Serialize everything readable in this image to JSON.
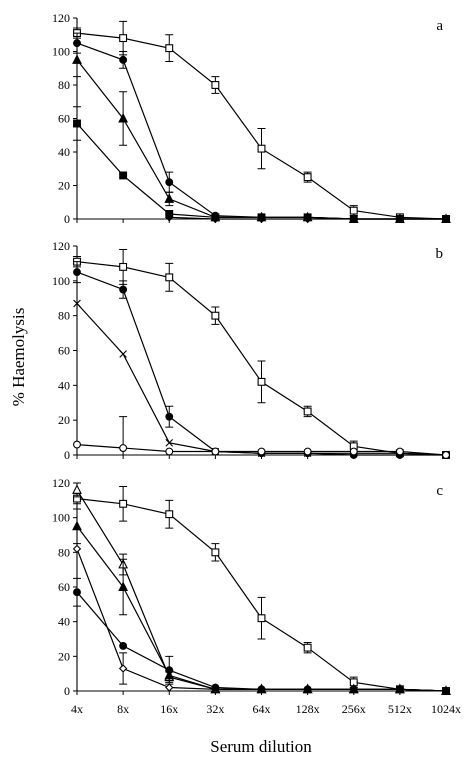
{
  "figure": {
    "ylabel": "% Haemolysis",
    "xlabel": "Serum dilution"
  },
  "chart_data": [
    {
      "type": "line",
      "panel": "a",
      "categories": [
        "4x",
        "8x",
        "16x",
        "32x",
        "64x",
        "128x",
        "256x",
        "512x",
        "1024x"
      ],
      "ylim": [
        0,
        120
      ],
      "yticks": [
        "0",
        "20",
        "40",
        "60",
        "80",
        "100",
        "120"
      ],
      "show_xtick_labels": false,
      "series": [
        {
          "marker": "open-square",
          "values": [
            111,
            108,
            102,
            80,
            42,
            25,
            5,
            1,
            0
          ],
          "errors": [
            3,
            10,
            8,
            5,
            12,
            3,
            3,
            0,
            0
          ]
        },
        {
          "marker": "filled-circle",
          "values": [
            105,
            95,
            22,
            2,
            1,
            1,
            0,
            0,
            0
          ],
          "errors": [
            6,
            5,
            6,
            0,
            0,
            0,
            0,
            0,
            0
          ]
        },
        {
          "marker": "filled-triangle",
          "values": [
            95,
            60,
            12,
            1,
            1,
            1,
            0,
            0,
            0
          ],
          "errors": [
            10,
            16,
            4,
            0,
            0,
            0,
            0,
            0,
            0
          ]
        },
        {
          "marker": "filled-square",
          "values": [
            57,
            26,
            3,
            1,
            1,
            1,
            0,
            0,
            0
          ],
          "errors": [
            10,
            0,
            0,
            0,
            0,
            0,
            0,
            0,
            0
          ]
        },
        {
          "marker": "filled-diamond",
          "values": [
            null,
            null,
            1,
            0,
            0,
            0,
            0,
            0,
            0
          ],
          "errors": [
            0,
            0,
            0,
            0,
            0,
            0,
            0,
            0,
            0
          ]
        }
      ]
    },
    {
      "type": "line",
      "panel": "b",
      "categories": [
        "4x",
        "8x",
        "16x",
        "32x",
        "64x",
        "128x",
        "256x",
        "512x",
        "1024x"
      ],
      "ylim": [
        0,
        120
      ],
      "yticks": [
        "0",
        "20",
        "40",
        "60",
        "80",
        "100",
        "120"
      ],
      "show_xtick_labels": false,
      "series": [
        {
          "marker": "open-square",
          "values": [
            111,
            108,
            102,
            80,
            42,
            25,
            5,
            1,
            0
          ],
          "errors": [
            3,
            10,
            8,
            5,
            12,
            3,
            3,
            0,
            0
          ]
        },
        {
          "marker": "filled-circle",
          "values": [
            105,
            95,
            22,
            2,
            1,
            1,
            0,
            0,
            0
          ],
          "errors": [
            6,
            5,
            6,
            0,
            0,
            0,
            0,
            0,
            0
          ]
        },
        {
          "marker": "cross",
          "values": [
            87,
            58,
            7,
            2,
            1,
            1,
            1,
            1,
            0
          ],
          "errors": [
            0,
            0,
            0,
            0,
            0,
            0,
            0,
            0,
            0
          ]
        },
        {
          "marker": "open-circle",
          "values": [
            6,
            4,
            2,
            2,
            2,
            2,
            2,
            2,
            0
          ],
          "errors": [
            0,
            18,
            0,
            0,
            0,
            0,
            0,
            0,
            0
          ]
        }
      ]
    },
    {
      "type": "line",
      "panel": "c",
      "categories": [
        "4x",
        "8x",
        "16x",
        "32x",
        "64x",
        "128x",
        "256x",
        "512x",
        "1024x"
      ],
      "ylim": [
        0,
        120
      ],
      "yticks": [
        "0",
        "20",
        "40",
        "60",
        "80",
        "100",
        "120"
      ],
      "show_xtick_labels": true,
      "series": [
        {
          "marker": "open-square",
          "values": [
            111,
            108,
            102,
            80,
            42,
            25,
            5,
            1,
            0
          ],
          "errors": [
            3,
            10,
            8,
            5,
            12,
            3,
            3,
            0,
            0
          ]
        },
        {
          "marker": "open-triangle",
          "values": [
            116,
            73,
            8,
            1,
            1,
            1,
            1,
            1,
            0
          ],
          "errors": [
            4,
            6,
            3,
            0,
            0,
            0,
            0,
            0,
            0
          ]
        },
        {
          "marker": "filled-triangle",
          "values": [
            95,
            60,
            9,
            1,
            1,
            1,
            1,
            1,
            0
          ],
          "errors": [
            10,
            16,
            3,
            0,
            0,
            0,
            0,
            0,
            0
          ]
        },
        {
          "marker": "open-diamond",
          "values": [
            82,
            13,
            2,
            1,
            1,
            1,
            1,
            1,
            0
          ],
          "errors": [
            0,
            9,
            0,
            0,
            0,
            0,
            0,
            0,
            0
          ]
        },
        {
          "marker": "filled-circle",
          "values": [
            57,
            26,
            12,
            2,
            1,
            1,
            1,
            1,
            0
          ],
          "errors": [
            8,
            0,
            8,
            0,
            0,
            0,
            0,
            0,
            0
          ]
        }
      ]
    }
  ]
}
